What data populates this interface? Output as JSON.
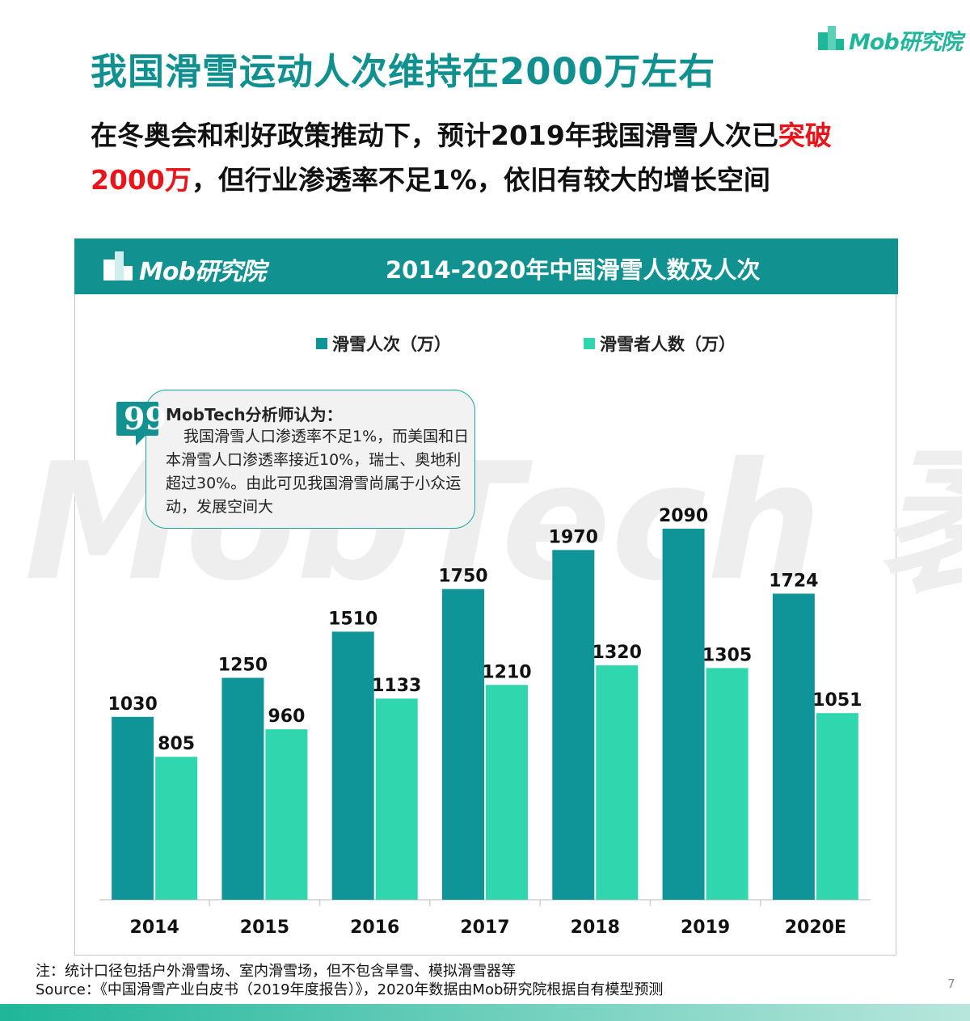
{
  "brand": {
    "logo_text": "Mob研究院"
  },
  "header": {
    "title": "我国滑雪运动人次维持在2000万左右",
    "subtitle_part1": "在冬奥会和利好政策推动下，预计2019年我国滑雪人次已",
    "subtitle_highlight": "突破2000万",
    "subtitle_part2": "，但行业渗透率不足1%，依旧有较大的增长空间"
  },
  "colors": {
    "accent": "#11918f",
    "series1": "#0f9597",
    "series2": "#2fd6ae",
    "highlight": "#e8161b"
  },
  "panel": {
    "brand": "Mob研究院",
    "watermark": "MobTech 袤博"
  },
  "callout": {
    "title": "MobTech分析师认为：",
    "body": "我国滑雪人口渗透率不足1%，而美国和日本滑雪人口渗透率接近10%，瑞士、奥地利超过30%。由此可见我国滑雪尚属于小众运动，发展空间大"
  },
  "chart_data": {
    "type": "bar",
    "title": "2014-2020年中国滑雪人数及人次",
    "categories": [
      "2014",
      "2015",
      "2016",
      "2017",
      "2018",
      "2019",
      "2020E"
    ],
    "series": [
      {
        "name": "滑雪人次（万）",
        "values": [
          1030,
          1250,
          1510,
          1750,
          1970,
          2090,
          1724
        ]
      },
      {
        "name": "滑雪者人数（万）",
        "values": [
          805,
          960,
          1133,
          1210,
          1320,
          1305,
          1051
        ]
      }
    ],
    "ylim": [
      0,
      2090
    ],
    "legend_position": "top",
    "grid": false
  },
  "footer": {
    "note": "注：统计口径包括户外滑雪场、室内滑雪场，但不包含旱雪、模拟滑雪器等",
    "source": "Source：《中国滑雪产业白皮书（2019年度报告）》，2020年数据由Mob研究院根据自有模型预测",
    "page_number": "7"
  }
}
